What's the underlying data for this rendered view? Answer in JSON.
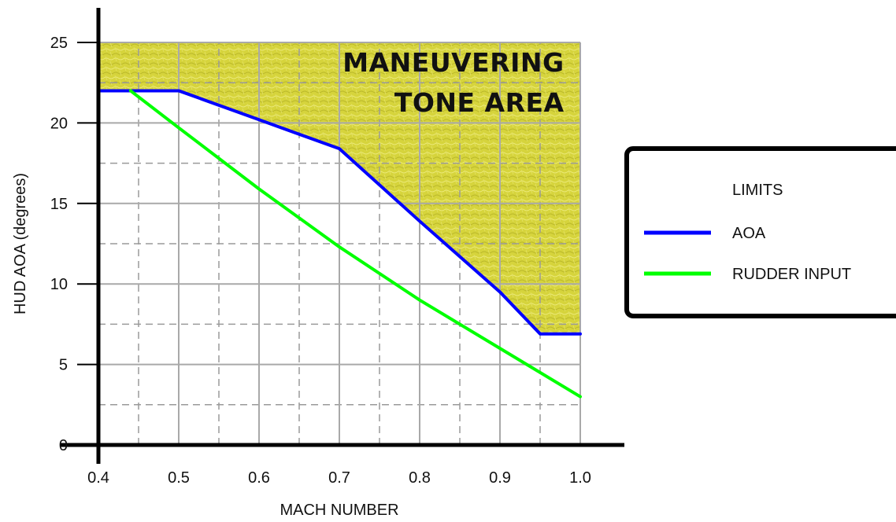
{
  "chart_data": {
    "type": "line",
    "title": "",
    "xlabel": "MACH NUMBER",
    "ylabel": "HUD AOA (degrees)",
    "xlim": [
      0.4,
      1.0
    ],
    "ylim": [
      0,
      25
    ],
    "x_ticks": [
      "0.4",
      "0.5",
      "0.6",
      "0.7",
      "0.8",
      "0.9",
      "1.0"
    ],
    "y_ticks": [
      "0",
      "5",
      "10",
      "15",
      "20",
      "25"
    ],
    "grid": "solid at labeled ticks, dashed at half ticks",
    "shaded_area": {
      "label_lines": [
        "MANEUVERING",
        "TONE AREA"
      ],
      "color": "#d4d23a",
      "bounded_below_by": "AOA"
    },
    "legend": {
      "title": "LIMITS",
      "placement": "right",
      "entries": [
        {
          "label": "AOA",
          "color": "#0000ff"
        },
        {
          "label": "RUDDER INPUT",
          "color": "#00ff00"
        }
      ]
    },
    "series": [
      {
        "name": "AOA",
        "color": "#0000ff",
        "x": [
          0.4,
          0.5,
          0.6,
          0.7,
          0.8,
          0.9,
          0.95,
          1.0
        ],
        "y": [
          22,
          22,
          20.2,
          18.4,
          13.9,
          9.5,
          6.9,
          6.9
        ]
      },
      {
        "name": "RUDDER INPUT",
        "color": "#00ff00",
        "x": [
          0.44,
          0.5,
          0.6,
          0.7,
          0.8,
          0.9,
          1.0
        ],
        "y": [
          22,
          19.7,
          15.9,
          12.3,
          9.0,
          6.0,
          3.0
        ]
      }
    ]
  }
}
